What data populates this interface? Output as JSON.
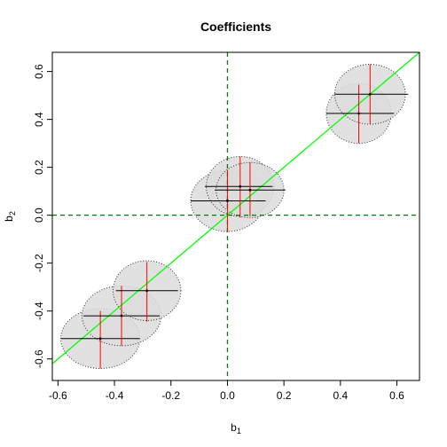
{
  "chart_data": {
    "type": "scatter",
    "title": "Coefficients",
    "xlabel": {
      "base": "b",
      "sub": "1"
    },
    "ylabel": {
      "base": "b",
      "sub": "2"
    },
    "xlim": [
      -0.62,
      0.68
    ],
    "ylim": [
      -0.69,
      0.68
    ],
    "xticks": [
      -0.6,
      -0.4,
      -0.2,
      0.0,
      0.2,
      0.4,
      0.6
    ],
    "xtick_labels": [
      "-0.6",
      "-0.4",
      "-0.2",
      "0.0",
      "0.2",
      "0.4",
      "0.6"
    ],
    "yticks": [
      -0.6,
      -0.4,
      -0.2,
      0.0,
      0.2,
      0.4,
      0.6
    ],
    "ytick_labels": [
      "-0.6",
      "-0.4",
      "-0.2",
      "0.0",
      "0.2",
      "0.4",
      "0.6"
    ],
    "grid": false,
    "reference_lines": {
      "vertical_x": 0.0,
      "horizontal_y": 0.0,
      "color": "#008000",
      "style": "dashed"
    },
    "identity_line": {
      "slope": 1,
      "intercept": 0,
      "color": "#00ff00"
    },
    "ellipse_fill": "#dcdcdc",
    "ci_color_b1": "#000000",
    "ci_color_b2": "#ff0000",
    "points": [
      {
        "b1": -0.45,
        "b2": -0.515,
        "ci_b1": [
          -0.59,
          -0.31
        ],
        "ci_b2": [
          -0.64,
          -0.4
        ],
        "rb1": 0.14,
        "rb2": 0.125
      },
      {
        "b1": -0.375,
        "b2": -0.42,
        "ci_b1": [
          -0.51,
          -0.24
        ],
        "ci_b2": [
          -0.545,
          -0.295
        ],
        "rb1": 0.14,
        "rb2": 0.125
      },
      {
        "b1": -0.285,
        "b2": -0.315,
        "ci_b1": [
          -0.395,
          -0.175
        ],
        "ci_b2": [
          -0.445,
          -0.195
        ],
        "rb1": 0.12,
        "rb2": 0.125
      },
      {
        "b1": 0.0,
        "b2": 0.06,
        "ci_b1": [
          -0.13,
          0.135
        ],
        "ci_b2": [
          -0.07,
          0.19
        ],
        "rb1": 0.13,
        "rb2": 0.128
      },
      {
        "b1": 0.045,
        "b2": 0.12,
        "ci_b1": [
          -0.08,
          0.16
        ],
        "ci_b2": [
          -0.01,
          0.245
        ],
        "rb1": 0.12,
        "rb2": 0.125
      },
      {
        "b1": 0.08,
        "b2": 0.105,
        "ci_b1": [
          -0.045,
          0.205
        ],
        "ci_b2": [
          -0.005,
          0.22
        ],
        "rb1": 0.12,
        "rb2": 0.115
      },
      {
        "b1": 0.465,
        "b2": 0.425,
        "ci_b1": [
          0.35,
          0.59
        ],
        "ci_b2": [
          0.3,
          0.545
        ],
        "rb1": 0.115,
        "rb2": 0.125
      },
      {
        "b1": 0.505,
        "b2": 0.505,
        "ci_b1": [
          0.38,
          0.64
        ],
        "ci_b2": [
          0.38,
          0.63
        ],
        "rb1": 0.125,
        "rb2": 0.125
      }
    ]
  }
}
